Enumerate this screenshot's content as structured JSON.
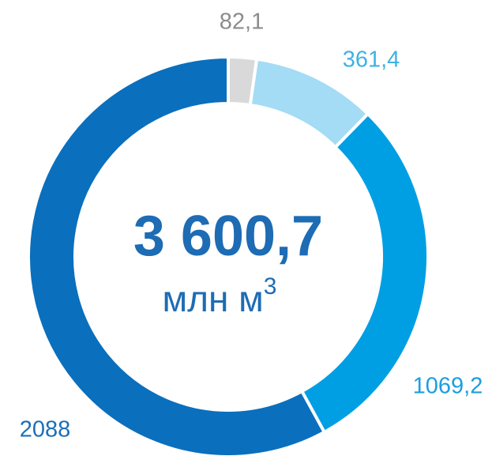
{
  "chart_data": {
    "type": "donut",
    "center_text": "3 600,7",
    "unit": "млн м",
    "unit_superscript": "3",
    "values": [
      82.1,
      361.4,
      1069.2,
      2088
    ],
    "value_labels": [
      "82,1",
      "361,4",
      "1069,2",
      "2088"
    ],
    "colors": [
      "#d9d9d9",
      "#a3dcf4",
      "#009fe3",
      "#0a6fbd"
    ],
    "label_colors": [
      "#8c8c8c",
      "#3fb2e4",
      "#1a9ee0",
      "#1b6fb8"
    ]
  }
}
